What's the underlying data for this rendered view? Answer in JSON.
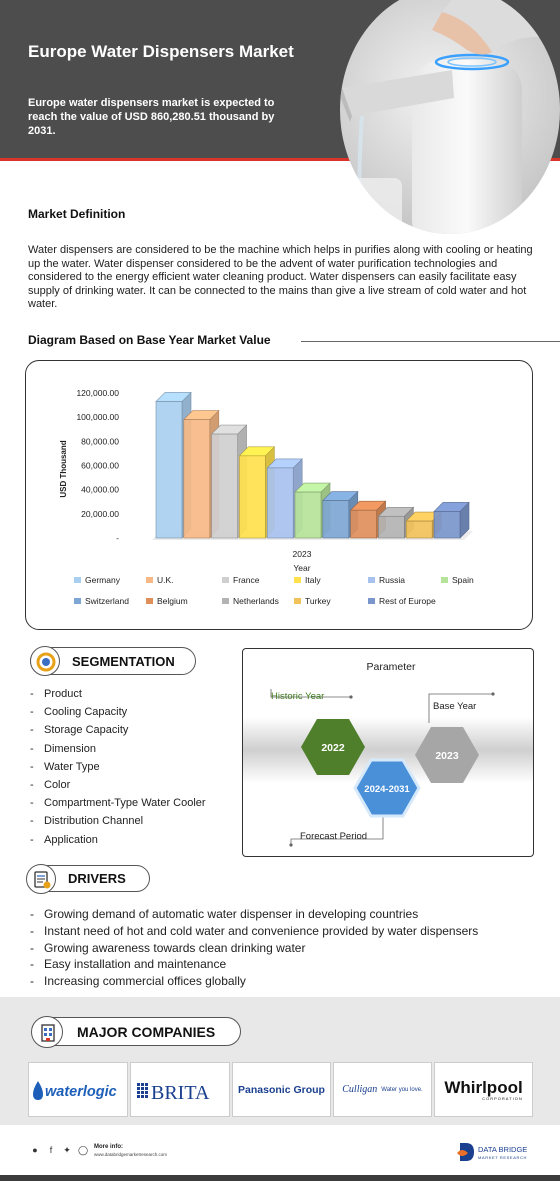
{
  "header": {
    "title": "Europe Water Dispensers Market",
    "subtitle": "Europe water dispensers market is expected to reach the value of USD 860,280.51 thousand by 2031."
  },
  "definition": {
    "title": "Market Definition",
    "text": "Water dispensers are considered to be the machine which helps in purifies along with cooling or heating up the water. Water dispenser considered to be the advent of water purification technologies and considered to the energy efficient water cleaning product. Water dispensers can easily facilitate easy supply of drinking water. It can be connected to the mains than give a live stream of cold water and hot water."
  },
  "diagram": {
    "title": "Diagram Based on Base Year Market Value"
  },
  "chart_data": {
    "type": "bar",
    "categories": [
      "Germany",
      "U.K.",
      "France",
      "Italy",
      "Russia",
      "Spain",
      "Switzerland",
      "Belgium",
      "Netherlands",
      "Turkey",
      "Rest of Europe"
    ],
    "values": [
      113000,
      98000,
      86000,
      68000,
      58000,
      38000,
      31000,
      23000,
      18000,
      14000,
      22000
    ],
    "colors": [
      "#a9cff0",
      "#f7b885",
      "#cfcfcf",
      "#ffe14d",
      "#a8c2ef",
      "#b6e39a",
      "#7ea6d4",
      "#e08f5b",
      "#b3b3b3",
      "#f2c25a",
      "#7b96cc"
    ],
    "ytick_labels": [
      "-",
      "20,000.00",
      "40,000.00",
      "60,000.00",
      "80,000.00",
      "100,000.00",
      "120,000.00"
    ],
    "ytick_values": [
      0,
      20000,
      40000,
      60000,
      80000,
      100000,
      120000
    ],
    "ylim": [
      0,
      120000
    ],
    "ylabel": "USD Thousand",
    "xtick": "2023",
    "xlabel": "Year",
    "legend": "bottom"
  },
  "segmentation": {
    "title": "SEGMENTATION",
    "items": [
      "Product",
      "Cooling Capacity",
      "Storage Capacity",
      "Dimension",
      "Water Type",
      "Color",
      "Compartment-Type Water Cooler",
      "Distribution Channel",
      "Application"
    ]
  },
  "parameter": {
    "title": "Parameter",
    "historic_label": "Historic Year",
    "base_label": "Base Year",
    "forecast_label": "Forecast Period",
    "historic_year": "2022",
    "base_year": "2023",
    "forecast_years": "2024-2031",
    "colors": {
      "historic": "#4f7f2a",
      "forecast": "#4a90d9",
      "base": "#a6a6a6"
    }
  },
  "drivers": {
    "title": "DRIVERS",
    "items": [
      "Growing demand of automatic water dispenser in developing countries",
      "Instant need of hot and cold water and convenience provided by water dispensers",
      "Growing awareness towards clean drinking water",
      "Easy installation and maintenance",
      "Increasing commercial offices globally"
    ]
  },
  "companies": {
    "title": "MAJOR COMPANIES",
    "logos": [
      {
        "name": "waterlogic"
      },
      {
        "name": "BRITA"
      },
      {
        "name": "Panasonic Group"
      },
      {
        "name": "Culligan",
        "tagline": "Water you love."
      },
      {
        "name": "Whirlpool",
        "tagline": "CORPORATION"
      }
    ]
  },
  "footer": {
    "more_info_label": "More info:",
    "url": "www.databridgemarketresearch.com",
    "brand": "DATA BRIDGE",
    "brand_sub": "MARKET RESEARCH"
  }
}
